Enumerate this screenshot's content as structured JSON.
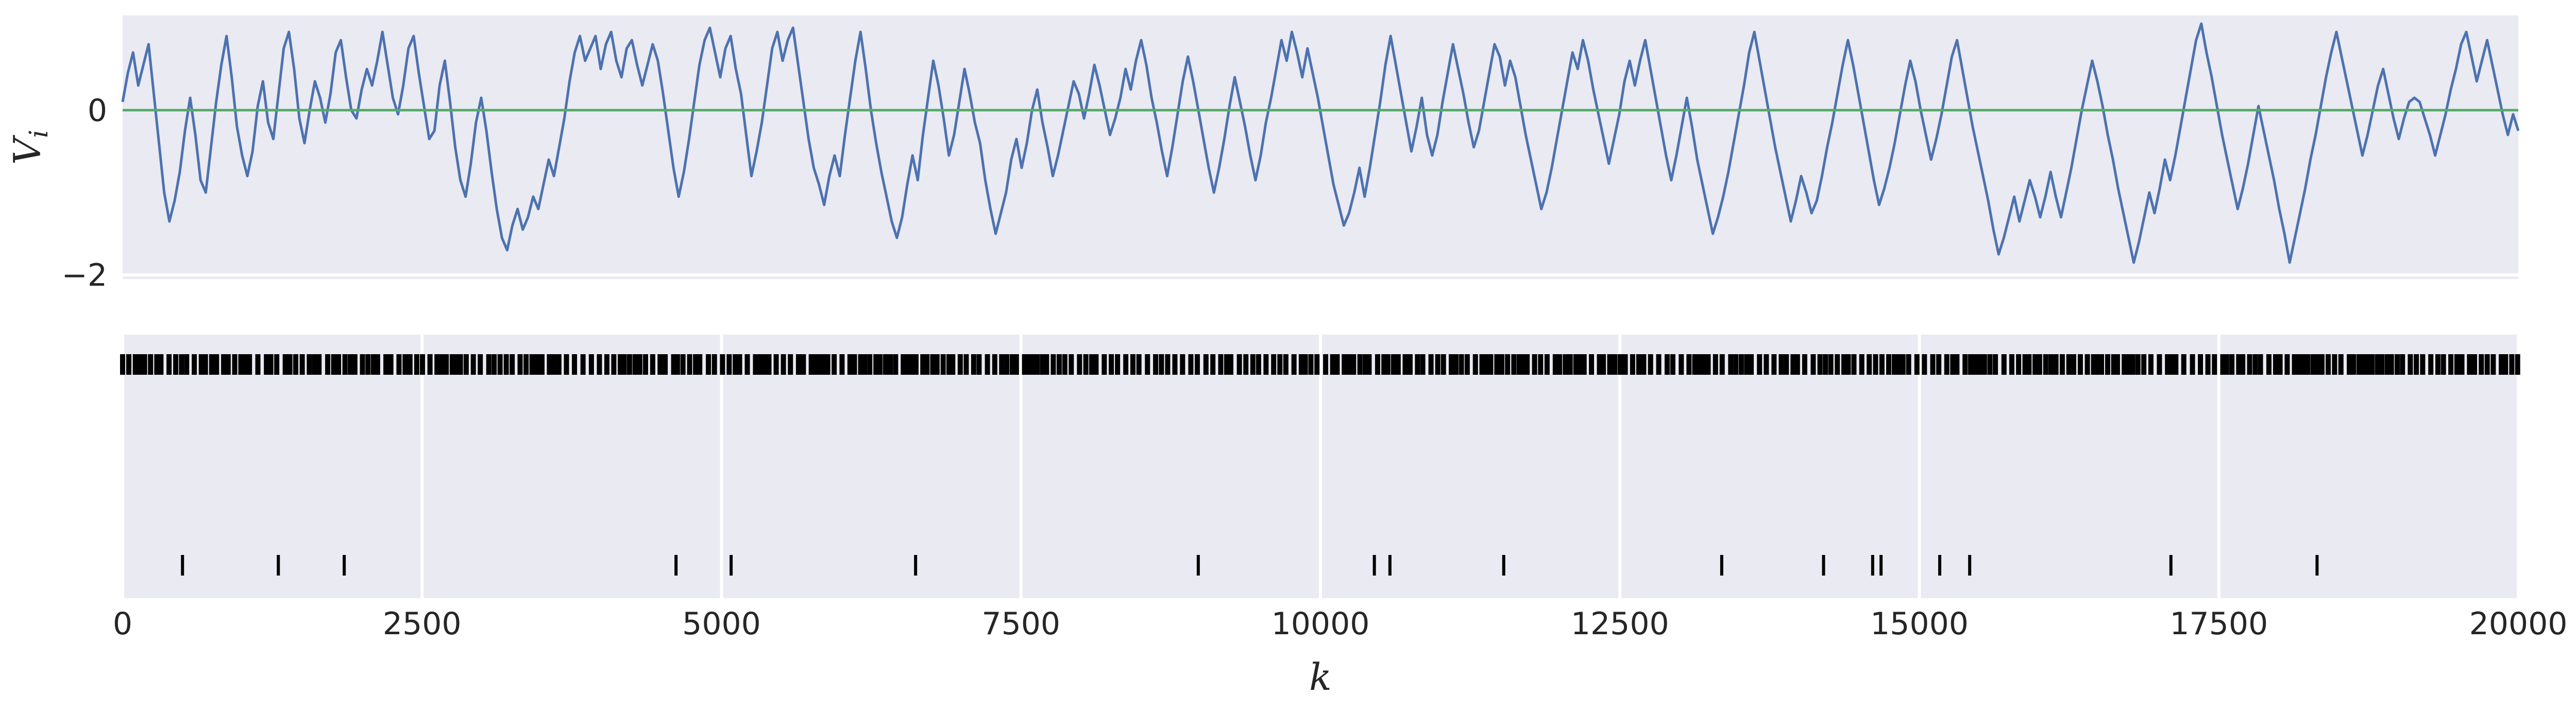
{
  "chart_data": [
    {
      "type": "line",
      "panel": "top",
      "ylabel": "V",
      "ylabel_sub": "i",
      "xlim": [
        0,
        20000
      ],
      "ylim": [
        -2.05,
        1.15
      ],
      "yticks": [
        0,
        -2
      ],
      "grid": true,
      "background": "#EAEAF2",
      "series": [
        {
          "color": "#4C72B0",
          "values": [
            0.1,
            0.45,
            0.7,
            0.3,
            0.55,
            0.8,
            0.2,
            -0.4,
            -1.0,
            -1.35,
            -1.1,
            -0.75,
            -0.25,
            0.15,
            -0.3,
            -0.85,
            -1.0,
            -0.45,
            0.1,
            0.55,
            0.9,
            0.4,
            -0.2,
            -0.55,
            -0.8,
            -0.5,
            0.05,
            0.35,
            -0.15,
            -0.35,
            0.2,
            0.75,
            0.95,
            0.5,
            -0.1,
            -0.4,
            0.0,
            0.35,
            0.15,
            -0.15,
            0.2,
            0.7,
            0.85,
            0.4,
            0.0,
            -0.1,
            0.25,
            0.5,
            0.3,
            0.6,
            0.95,
            0.55,
            0.15,
            -0.05,
            0.3,
            0.75,
            0.9,
            0.45,
            0.05,
            -0.35,
            -0.25,
            0.3,
            0.6,
            0.1,
            -0.45,
            -0.85,
            -1.05,
            -0.65,
            -0.15,
            0.15,
            -0.25,
            -0.75,
            -1.2,
            -1.55,
            -1.7,
            -1.4,
            -1.2,
            -1.45,
            -1.3,
            -1.05,
            -1.2,
            -0.9,
            -0.6,
            -0.8,
            -0.45,
            -0.1,
            0.35,
            0.7,
            0.9,
            0.6,
            0.75,
            0.9,
            0.5,
            0.8,
            0.95,
            0.6,
            0.4,
            0.75,
            0.85,
            0.55,
            0.3,
            0.55,
            0.8,
            0.6,
            0.2,
            -0.25,
            -0.7,
            -1.05,
            -0.75,
            -0.35,
            0.1,
            0.55,
            0.85,
            1.0,
            0.7,
            0.4,
            0.75,
            0.9,
            0.5,
            0.2,
            -0.3,
            -0.8,
            -0.5,
            -0.15,
            0.3,
            0.75,
            0.95,
            0.6,
            0.85,
            1.0,
            0.55,
            0.1,
            -0.35,
            -0.7,
            -0.9,
            -1.15,
            -0.8,
            -0.55,
            -0.8,
            -0.3,
            0.15,
            0.6,
            0.95,
            0.5,
            0.0,
            -0.4,
            -0.75,
            -1.05,
            -1.35,
            -1.55,
            -1.3,
            -0.9,
            -0.55,
            -0.85,
            -0.3,
            0.15,
            0.6,
            0.3,
            -0.1,
            -0.55,
            -0.3,
            0.1,
            0.5,
            0.2,
            -0.15,
            -0.4,
            -0.85,
            -1.2,
            -1.5,
            -1.25,
            -1.0,
            -0.6,
            -0.35,
            -0.7,
            -0.4,
            0.0,
            0.25,
            -0.15,
            -0.45,
            -0.8,
            -0.55,
            -0.25,
            0.05,
            0.35,
            0.2,
            -0.1,
            0.2,
            0.55,
            0.3,
            0.0,
            -0.3,
            -0.1,
            0.15,
            0.5,
            0.25,
            0.6,
            0.85,
            0.55,
            0.15,
            -0.15,
            -0.5,
            -0.8,
            -0.45,
            -0.05,
            0.35,
            0.65,
            0.35,
            0.0,
            -0.35,
            -0.7,
            -1.0,
            -0.7,
            -0.35,
            0.05,
            0.4,
            0.1,
            -0.2,
            -0.55,
            -0.85,
            -0.55,
            -0.15,
            0.15,
            0.5,
            0.85,
            0.6,
            0.95,
            0.7,
            0.4,
            0.75,
            0.45,
            0.15,
            -0.2,
            -0.55,
            -0.9,
            -1.15,
            -1.4,
            -1.25,
            -1.0,
            -0.7,
            -1.05,
            -0.7,
            -0.3,
            0.1,
            0.55,
            0.9,
            0.55,
            0.2,
            -0.15,
            -0.5,
            -0.2,
            0.15,
            -0.3,
            -0.55,
            -0.3,
            0.1,
            0.45,
            0.8,
            0.5,
            0.2,
            -0.15,
            -0.45,
            -0.25,
            0.1,
            0.45,
            0.8,
            0.65,
            0.3,
            0.6,
            0.4,
            0.05,
            -0.3,
            -0.6,
            -0.9,
            -1.2,
            -1.0,
            -0.7,
            -0.35,
            0.0,
            0.35,
            0.7,
            0.5,
            0.85,
            0.6,
            0.25,
            -0.05,
            -0.35,
            -0.65,
            -0.35,
            -0.05,
            0.35,
            0.6,
            0.3,
            0.6,
            0.85,
            0.5,
            0.15,
            -0.2,
            -0.55,
            -0.85,
            -0.55,
            -0.2,
            0.15,
            -0.2,
            -0.6,
            -0.9,
            -1.2,
            -1.5,
            -1.3,
            -1.05,
            -0.75,
            -0.4,
            -0.05,
            0.3,
            0.7,
            0.95,
            0.6,
            0.25,
            -0.1,
            -0.45,
            -0.75,
            -1.05,
            -1.35,
            -1.1,
            -0.8,
            -1.0,
            -1.25,
            -1.1,
            -0.8,
            -0.45,
            -0.15,
            0.2,
            0.55,
            0.85,
            0.55,
            0.2,
            -0.15,
            -0.5,
            -0.85,
            -1.15,
            -0.95,
            -0.7,
            -0.4,
            -0.05,
            0.3,
            0.6,
            0.35,
            0.0,
            -0.3,
            -0.6,
            -0.35,
            -0.05,
            0.3,
            0.65,
            0.85,
            0.5,
            0.15,
            -0.2,
            -0.5,
            -0.8,
            -1.1,
            -1.45,
            -1.75,
            -1.55,
            -1.3,
            -1.05,
            -1.35,
            -1.1,
            -0.85,
            -1.05,
            -1.3,
            -1.05,
            -0.75,
            -1.05,
            -1.3,
            -1.0,
            -0.7,
            -0.35,
            0.0,
            0.3,
            0.6,
            0.35,
            0.05,
            -0.3,
            -0.6,
            -0.95,
            -1.25,
            -1.55,
            -1.85,
            -1.6,
            -1.3,
            -1.0,
            -1.25,
            -0.95,
            -0.6,
            -0.85,
            -0.55,
            -0.2,
            0.15,
            0.5,
            0.85,
            1.05,
            0.7,
            0.4,
            0.05,
            -0.3,
            -0.6,
            -0.9,
            -1.2,
            -0.95,
            -0.65,
            -0.3,
            0.05,
            -0.25,
            -0.55,
            -0.85,
            -1.2,
            -1.5,
            -1.85,
            -1.55,
            -1.25,
            -0.95,
            -0.6,
            -0.3,
            0.05,
            0.4,
            0.7,
            0.95,
            0.65,
            0.35,
            0.05,
            -0.25,
            -0.55,
            -0.3,
            0.0,
            0.3,
            0.5,
            0.2,
            -0.1,
            -0.35,
            -0.1,
            0.1,
            0.15,
            0.1,
            -0.1,
            -0.3,
            -0.55,
            -0.3,
            -0.05,
            0.25,
            0.5,
            0.8,
            0.95,
            0.65,
            0.35,
            0.6,
            0.85,
            0.55,
            0.25,
            -0.05,
            -0.3,
            -0.05,
            -0.25
          ]
        },
        {
          "color": "#55A868",
          "values": [
            0,
            0
          ]
        }
      ]
    },
    {
      "type": "scatter",
      "panel": "bottom",
      "marker": "vertical-tick",
      "xlabel": "k",
      "xlim": [
        0,
        20000
      ],
      "xticks": [
        "0",
        "2500",
        "5000",
        "7500",
        "10000",
        "12500",
        "15000",
        "17500",
        "20000"
      ],
      "grid": true,
      "background": "#EAEAF2",
      "top_row_density_tick_spacing": 52,
      "series": [
        {
          "color": "#000000",
          "x": [
            500,
            1300,
            1850,
            4620,
            5080,
            6620,
            8980,
            10450,
            10580,
            11530,
            13350,
            14200,
            14610,
            14680,
            15170,
            15420,
            17100,
            18320
          ]
        }
      ]
    }
  ]
}
